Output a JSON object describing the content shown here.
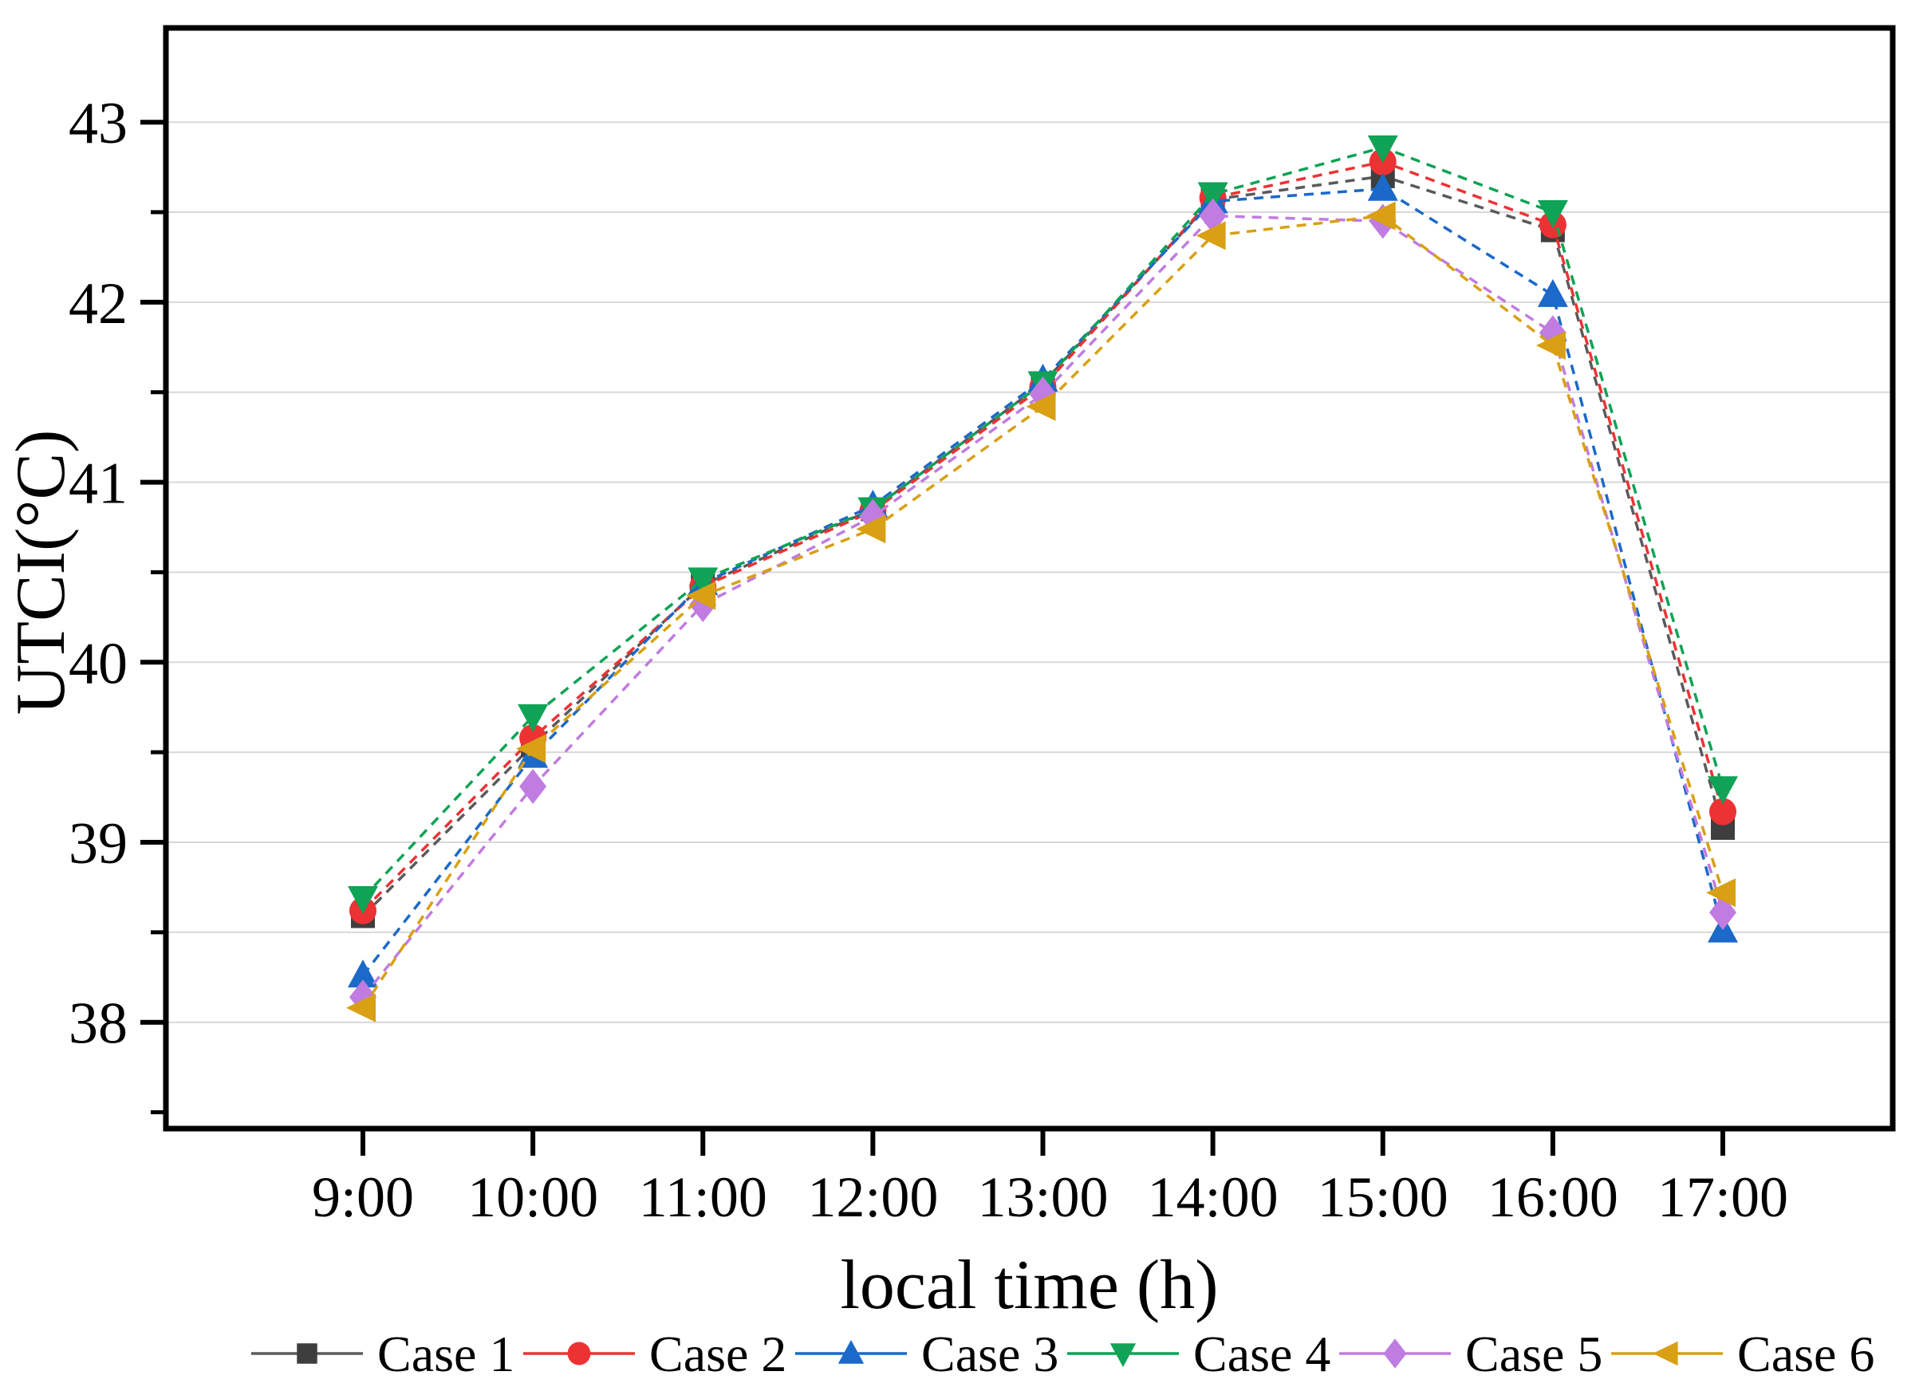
{
  "chart_data": {
    "type": "line",
    "title": "",
    "xlabel": "local time (h)",
    "ylabel": "UTCI(°C)",
    "categories": [
      "9:00",
      "10:00",
      "11:00",
      "12:00",
      "13:00",
      "14:00",
      "15:00",
      "16:00",
      "17:00"
    ],
    "y_ticks_major": [
      38,
      39,
      40,
      41,
      42,
      43
    ],
    "y_minor_step": 0.5,
    "ylim": [
      37.45,
      43.52
    ],
    "grid": "horizontal, every 0.5",
    "legend_position": "bottom",
    "series": [
      {
        "name": "Case 1",
        "marker": "square",
        "color": "#3e3e3e",
        "line_color": "#5a5a5a",
        "values": [
          38.59,
          39.54,
          40.43,
          40.85,
          41.55,
          42.57,
          42.7,
          42.4,
          39.08
        ]
      },
      {
        "name": "Case 2",
        "marker": "circle",
        "color": "#ed3234",
        "line_color": "#ed3234",
        "values": [
          38.62,
          39.58,
          40.42,
          40.84,
          41.53,
          42.58,
          42.78,
          42.43,
          39.17
        ]
      },
      {
        "name": "Case 3",
        "marker": "triangle-up",
        "color": "#1b69c8",
        "line_color": "#1b69c8",
        "values": [
          38.26,
          39.48,
          40.44,
          40.87,
          41.57,
          42.56,
          42.63,
          42.04,
          38.51
        ]
      },
      {
        "name": "Case 4",
        "marker": "triangle-down",
        "color": "#0ea355",
        "line_color": "#0ea355",
        "values": [
          38.69,
          39.7,
          40.46,
          40.85,
          41.55,
          42.6,
          42.86,
          42.5,
          39.3
        ]
      },
      {
        "name": "Case 5",
        "marker": "diamond",
        "color": "#c07ce0",
        "line_color": "#c07ce0",
        "values": [
          38.14,
          39.31,
          40.32,
          40.81,
          41.49,
          42.48,
          42.45,
          41.83,
          38.61
        ]
      },
      {
        "name": "Case 6",
        "marker": "triangle-left",
        "color": "#d8a012",
        "line_color": "#d8a012",
        "values": [
          38.08,
          39.52,
          40.37,
          40.74,
          41.42,
          42.37,
          42.48,
          41.76,
          38.72
        ]
      }
    ],
    "colors": {
      "axis": "#000000",
      "gridline": "#d8d8d8",
      "background": "#ffffff"
    }
  }
}
